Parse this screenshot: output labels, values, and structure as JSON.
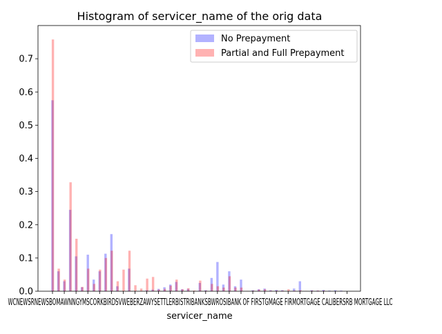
{
  "chart_data": {
    "type": "bar",
    "title": "Histogram of servicer_name of the orig data",
    "xlabel": "servicer_name",
    "ylabel": "",
    "ylim": [
      0,
      0.8
    ],
    "yticks": [
      0.0,
      0.1,
      0.2,
      0.3,
      0.4,
      0.5,
      0.6,
      0.7
    ],
    "ytick_labels": [
      "0.0",
      "0.1",
      "0.2",
      "0.3",
      "0.4",
      "0.5",
      "0.6",
      "0.7"
    ],
    "xtick_text": "WCNEWSRNEWSBOMAWNNGYMSCORKBIRDSVWEBERZAWYSETTLERBISTRIBANKSBWROSIBANK OF FIRSTGMAGE FIRMORTGAGE CALIBERSRB MORTGAGE LLC",
    "legend_position": "top-right",
    "series": [
      {
        "name": "No Prepayment",
        "color": "#0000ff",
        "opacity": 0.3,
        "values": [
          0.575,
          0.06,
          0.03,
          0.245,
          0.105,
          0.012,
          0.11,
          0.035,
          0.06,
          0.113,
          0.172,
          0.015,
          0.0,
          0.068,
          0.0,
          0.0,
          0.003,
          0.005,
          0.007,
          0.012,
          0.02,
          0.028,
          0.006,
          0.007,
          0.0,
          0.025,
          0.003,
          0.04,
          0.088,
          0.02,
          0.06,
          0.015,
          0.035,
          0.0,
          0.003,
          0.006,
          0.008,
          0.003,
          0.004,
          0.003,
          0.0,
          0.008,
          0.03,
          0.0,
          0.003,
          0.002,
          0.004,
          0.002,
          0.003,
          0.002
        ]
      },
      {
        "name": "Partial and Full Prepayment",
        "color": "#ff0000",
        "opacity": 0.3,
        "values": [
          0.758,
          0.068,
          0.035,
          0.328,
          0.158,
          0.013,
          0.068,
          0.022,
          0.065,
          0.1,
          0.122,
          0.03,
          0.065,
          0.122,
          0.018,
          0.008,
          0.038,
          0.043,
          0.005,
          0.007,
          0.017,
          0.035,
          0.006,
          0.009,
          0.002,
          0.032,
          0.002,
          0.022,
          0.015,
          0.011,
          0.045,
          0.011,
          0.011,
          0.001,
          0.002,
          0.005,
          0.006,
          0.002,
          0.002,
          0.002,
          0.006,
          0.002,
          0.003,
          0.001,
          0.002,
          0.002,
          0.002,
          0.001,
          0.001,
          0.001
        ]
      }
    ]
  }
}
